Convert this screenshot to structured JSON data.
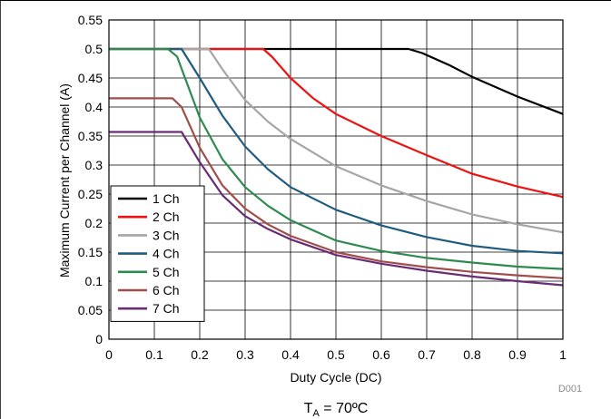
{
  "chart_data": {
    "type": "line",
    "xlabel": "Duty Cycle (DC)",
    "ylabel": "Maximum Current per Channel (A)",
    "xlim": [
      0,
      1
    ],
    "ylim": [
      0,
      0.55
    ],
    "x_ticks": [
      0,
      0.1,
      0.2,
      0.3,
      0.4,
      0.5,
      0.6,
      0.7,
      0.8,
      0.9,
      1
    ],
    "y_ticks": [
      0,
      0.05,
      0.1,
      0.15,
      0.2,
      0.25,
      0.3,
      0.35,
      0.4,
      0.45,
      0.5,
      0.55
    ],
    "x_tick_labels": [
      "0",
      "0.1",
      "0.2",
      "0.3",
      "0.4",
      "0.5",
      "0.6",
      "0.7",
      "0.8",
      "0.9",
      "1"
    ],
    "y_tick_labels": [
      "0",
      "0.05",
      "0.1",
      "0.15",
      "0.2",
      "0.25",
      "0.3",
      "0.35",
      "0.4",
      "0.45",
      "0.5",
      "0.55"
    ],
    "grid": true,
    "legend_position": "bottom-left",
    "note": "D001",
    "condition": {
      "main": "T",
      "sub": "A",
      "rest": " = 70ºC"
    },
    "series": [
      {
        "name": "1 Ch",
        "color": "#000000",
        "x": [
          0,
          0.1,
          0.2,
          0.3,
          0.4,
          0.5,
          0.6,
          0.66,
          0.69,
          0.75,
          0.8,
          0.9,
          1
        ],
        "y": [
          0.5,
          0.5,
          0.5,
          0.5,
          0.5,
          0.5,
          0.5,
          0.5,
          0.493,
          0.472,
          0.452,
          0.418,
          0.388
        ]
      },
      {
        "name": "2 Ch",
        "color": "#ee1111",
        "x": [
          0,
          0.1,
          0.2,
          0.3,
          0.34,
          0.36,
          0.4,
          0.45,
          0.5,
          0.6,
          0.7,
          0.8,
          0.9,
          1
        ],
        "y": [
          0.5,
          0.5,
          0.5,
          0.5,
          0.5,
          0.486,
          0.45,
          0.415,
          0.388,
          0.35,
          0.317,
          0.285,
          0.263,
          0.245
        ]
      },
      {
        "name": "3 Ch",
        "color": "#a6a6a6",
        "x": [
          0,
          0.1,
          0.22,
          0.25,
          0.3,
          0.35,
          0.4,
          0.5,
          0.6,
          0.7,
          0.8,
          0.9,
          1
        ],
        "y": [
          0.5,
          0.5,
          0.5,
          0.465,
          0.412,
          0.375,
          0.345,
          0.298,
          0.265,
          0.238,
          0.215,
          0.198,
          0.184
        ]
      },
      {
        "name": "4 Ch",
        "color": "#1f5c7f",
        "x": [
          0,
          0.1,
          0.16,
          0.2,
          0.25,
          0.3,
          0.35,
          0.4,
          0.5,
          0.6,
          0.7,
          0.8,
          0.9,
          1
        ],
        "y": [
          0.5,
          0.5,
          0.5,
          0.45,
          0.385,
          0.332,
          0.293,
          0.262,
          0.223,
          0.196,
          0.176,
          0.161,
          0.152,
          0.148
        ]
      },
      {
        "name": "5 Ch",
        "color": "#2e8b4f",
        "x": [
          0,
          0.1,
          0.13,
          0.15,
          0.2,
          0.25,
          0.3,
          0.35,
          0.4,
          0.5,
          0.6,
          0.7,
          0.8,
          0.9,
          1
        ],
        "y": [
          0.5,
          0.5,
          0.5,
          0.487,
          0.382,
          0.31,
          0.262,
          0.23,
          0.205,
          0.17,
          0.152,
          0.14,
          0.132,
          0.125,
          0.121
        ]
      },
      {
        "name": "6 Ch",
        "color": "#a04e4b",
        "x": [
          0,
          0.1,
          0.14,
          0.16,
          0.2,
          0.25,
          0.3,
          0.35,
          0.4,
          0.5,
          0.6,
          0.7,
          0.8,
          0.9,
          1
        ],
        "y": [
          0.415,
          0.415,
          0.415,
          0.4,
          0.33,
          0.265,
          0.225,
          0.198,
          0.178,
          0.15,
          0.134,
          0.124,
          0.116,
          0.11,
          0.105
        ]
      },
      {
        "name": "7 Ch",
        "color": "#6a2c74",
        "x": [
          0,
          0.1,
          0.16,
          0.2,
          0.25,
          0.3,
          0.35,
          0.4,
          0.5,
          0.6,
          0.7,
          0.8,
          0.9,
          1
        ],
        "y": [
          0.357,
          0.357,
          0.357,
          0.305,
          0.248,
          0.212,
          0.19,
          0.172,
          0.145,
          0.13,
          0.118,
          0.108,
          0.1,
          0.093
        ]
      }
    ]
  }
}
